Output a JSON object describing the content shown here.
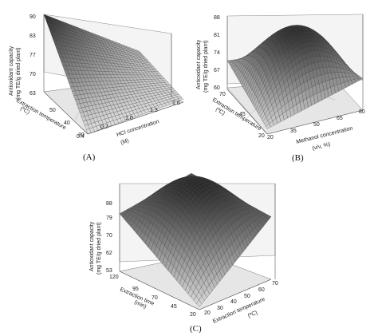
{
  "chart_data": [
    {
      "type": "surface3d",
      "panel_label": "(A)",
      "z_axis_label": [
        "Antioxidant capacity",
        "(mg TE/g dried plant)"
      ],
      "z_ticks": [
        "90",
        "83",
        "77",
        "70",
        "63"
      ],
      "z_range": [
        63,
        90
      ],
      "x_axis_label": [
        "HCl concentration",
        "(M)"
      ],
      "x_ticks": [
        "0.4",
        "0.7",
        "1.0",
        "1.3",
        "1.6"
      ],
      "x_range": [
        0.4,
        1.6
      ],
      "y_axis_label": [
        "Extraction temperature",
        "(ºC)"
      ],
      "y_ticks": [
        "30",
        "40",
        "50"
      ],
      "y_range": [
        30,
        50
      ],
      "corner_values": {
        "x_low_y_low": 63,
        "x_high_y_low": 64,
        "x_low_y_high": 90,
        "x_high_y_high": 66
      }
    },
    {
      "type": "surface3d",
      "panel_label": "(B)",
      "z_axis_label": [
        "Antioxidant capacity",
        "(mg TE/g dried plant)"
      ],
      "z_ticks": [
        "88",
        "81",
        "74",
        "67",
        "60"
      ],
      "z_range": [
        60,
        88
      ],
      "x_axis_label": [
        "Methanol concentration",
        "(v/v, %)"
      ],
      "x_ticks": [
        "20",
        "35",
        "50",
        "65",
        "80"
      ],
      "x_range": [
        20,
        80
      ],
      "y_axis_label": [
        "Extraction temperature",
        "(ºC)"
      ],
      "y_ticks": [
        "20",
        "45",
        "70"
      ],
      "y_range": [
        20,
        70
      ],
      "corner_values": {
        "x_low_y_low": 62,
        "x_high_y_low": 72,
        "x_low_y_high": 71,
        "x_high_y_high": 66,
        "peak": 87
      }
    },
    {
      "type": "surface3d",
      "panel_label": "(C)",
      "z_axis_label": [
        "Antioxidant capacity",
        "(mg TE/g dried plant)"
      ],
      "z_ticks": [
        "88",
        "79",
        "70",
        "62",
        "53"
      ],
      "z_range": [
        53,
        88
      ],
      "x_axis_label": [
        "Extraction temperature",
        "(ºC)"
      ],
      "x_ticks": [
        "20",
        "30",
        "40",
        "50",
        "60",
        "70"
      ],
      "x_range": [
        20,
        70
      ],
      "y_axis_label": [
        "Extraction time",
        "(min)"
      ],
      "y_ticks": [
        "120",
        "95",
        "70",
        "45",
        "20"
      ],
      "y_range": [
        20,
        120
      ],
      "corner_values": {
        "x_low_y_low": 54,
        "x_high_y_low": 78,
        "x_low_y_high": 76,
        "x_high_y_high": 80,
        "peak": 87
      }
    }
  ]
}
